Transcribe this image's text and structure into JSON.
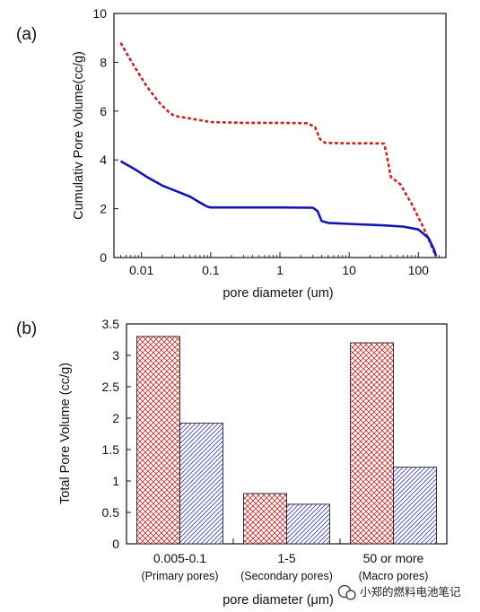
{
  "chart_data": [
    {
      "type": "line",
      "panel_label": "(a)",
      "xlabel": "pore diameter (um)",
      "ylabel": "Cumulativ Pore Volume(cc/g)",
      "x_scale": "log",
      "xlim": [
        0.004,
        250
      ],
      "ylim": [
        0,
        10
      ],
      "x_ticks": [
        0.01,
        0.1,
        1,
        10,
        100
      ],
      "x_tick_labels": [
        "0.01",
        "0.1",
        "1",
        "10",
        "100"
      ],
      "y_ticks": [
        0,
        2,
        4,
        6,
        8,
        10
      ],
      "y_tick_labels": [
        "0",
        "2",
        "4",
        "6",
        "8",
        "10"
      ],
      "series": [
        {
          "color": "#c62828",
          "style": "dashed",
          "points": [
            [
              0.005,
              8.8
            ],
            [
              0.006,
              8.4
            ],
            [
              0.008,
              7.8
            ],
            [
              0.012,
              7.0
            ],
            [
              0.018,
              6.35
            ],
            [
              0.025,
              5.95
            ],
            [
              0.03,
              5.8
            ],
            [
              0.05,
              5.7
            ],
            [
              0.1,
              5.55
            ],
            [
              0.3,
              5.52
            ],
            [
              1,
              5.52
            ],
            [
              2.5,
              5.5
            ],
            [
              3.2,
              5.35
            ],
            [
              3.8,
              4.85
            ],
            [
              4.5,
              4.7
            ],
            [
              10,
              4.68
            ],
            [
              25,
              4.68
            ],
            [
              32,
              4.67
            ],
            [
              35,
              4.2
            ],
            [
              40,
              3.3
            ],
            [
              55,
              3.0
            ],
            [
              80,
              2.2
            ],
            [
              120,
              1.2
            ],
            [
              170,
              0.2
            ],
            [
              180,
              0.05
            ]
          ]
        },
        {
          "color": "#1414b4",
          "style": "solid",
          "points": [
            [
              0.005,
              3.95
            ],
            [
              0.008,
              3.62
            ],
            [
              0.012,
              3.3
            ],
            [
              0.02,
              2.95
            ],
            [
              0.03,
              2.75
            ],
            [
              0.05,
              2.5
            ],
            [
              0.07,
              2.25
            ],
            [
              0.09,
              2.08
            ],
            [
              0.1,
              2.05
            ],
            [
              0.3,
              2.05
            ],
            [
              1,
              2.05
            ],
            [
              3.0,
              2.04
            ],
            [
              3.5,
              1.9
            ],
            [
              4.0,
              1.5
            ],
            [
              5.0,
              1.42
            ],
            [
              10,
              1.38
            ],
            [
              30,
              1.32
            ],
            [
              60,
              1.27
            ],
            [
              100,
              1.15
            ],
            [
              140,
              0.8
            ],
            [
              170,
              0.3
            ],
            [
              180,
              0.05
            ]
          ]
        }
      ]
    },
    {
      "type": "bar",
      "panel_label": "(b)",
      "xlabel": "pore diameter (μm)",
      "ylabel": "Total Pore Volume (cc/g)",
      "ylim": [
        0,
        3.5
      ],
      "y_ticks": [
        0,
        0.5,
        1,
        1.5,
        2,
        2.5,
        3,
        3.5
      ],
      "y_tick_labels": [
        "0",
        "0.5",
        "1",
        "1.5",
        "2",
        "2.5",
        "3",
        "3.5"
      ],
      "categories": [
        "0.005-0.1",
        "1-5",
        "50 or more"
      ],
      "category_sublabels": [
        "(Primary pores)",
        "(Secondary pores)",
        "(Macro pores)"
      ],
      "series": [
        {
          "color": "#c62828",
          "pattern": "crosshatch",
          "values": [
            3.3,
            0.8,
            3.2
          ]
        },
        {
          "color": "#3a3aa8",
          "pattern": "diagonal",
          "values": [
            1.92,
            0.63,
            1.22
          ]
        }
      ]
    }
  ],
  "watermark": {
    "text": "小郑的燃料电池笔记",
    "icon": "wechat-icon"
  }
}
